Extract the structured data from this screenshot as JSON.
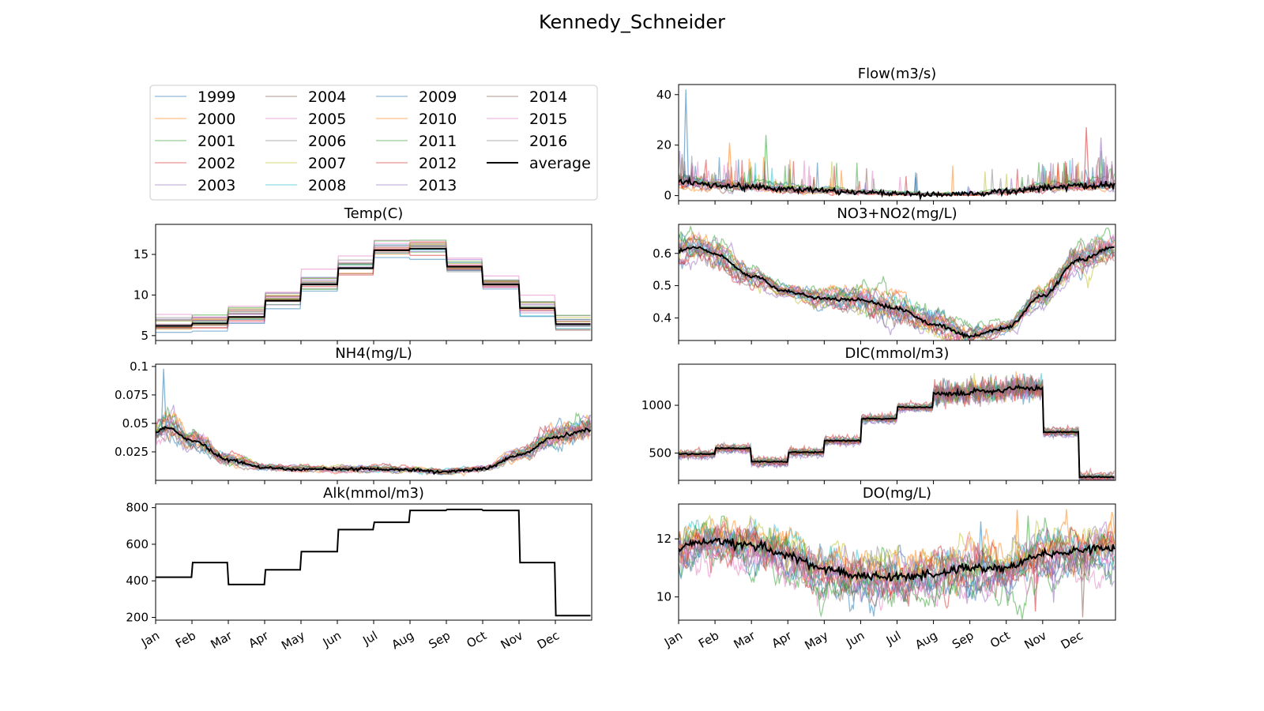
{
  "figure": {
    "title": "Kennedy_Schneider"
  },
  "colors": {
    "year_palette": [
      "#1f77b4",
      "#ff7f0e",
      "#2ca02c",
      "#d62728",
      "#9467bd",
      "#8c564b",
      "#e377c2",
      "#7f7f7f",
      "#bcbd22",
      "#17becf"
    ],
    "average": "#000000"
  },
  "legend": {
    "entries": [
      "1999",
      "2000",
      "2001",
      "2002",
      "2003",
      "2004",
      "2005",
      "2006",
      "2007",
      "2008",
      "2009",
      "2010",
      "2011",
      "2012",
      "2013",
      "2014",
      "2015",
      "2016",
      "average"
    ]
  },
  "chart_data": {
    "type": "line",
    "months": [
      "Jan",
      "Feb",
      "Mar",
      "Apr",
      "May",
      "Jun",
      "Jul",
      "Aug",
      "Sep",
      "Oct",
      "Nov",
      "Dec"
    ],
    "years": [
      "1999",
      "2000",
      "2001",
      "2002",
      "2003",
      "2004",
      "2005",
      "2006",
      "2007",
      "2008",
      "2009",
      "2010",
      "2011",
      "2012",
      "2013",
      "2014",
      "2015",
      "2016"
    ],
    "panels": [
      {
        "id": "flow",
        "title": "Flow(m3/s)",
        "kind": "noisy",
        "ylim": [
          -2,
          44
        ],
        "yticks": [
          0,
          20,
          40
        ],
        "average_knots": [
          [
            0,
            5.5
          ],
          [
            1,
            4
          ],
          [
            2,
            3.5
          ],
          [
            3,
            2.5
          ],
          [
            4,
            2
          ],
          [
            5,
            1.3
          ],
          [
            6,
            0.8
          ],
          [
            7,
            0.5
          ],
          [
            8,
            0.6
          ],
          [
            9,
            1.5
          ],
          [
            10,
            3
          ],
          [
            11,
            4
          ],
          [
            11.99,
            4
          ]
        ],
        "spread": 4.5,
        "spread_mode": "prop",
        "spike_rate": 0.06,
        "spike_max": 12,
        "spikes": [
          [
            0.2,
            42
          ],
          [
            1.4,
            21
          ],
          [
            2.4,
            24
          ],
          [
            11.2,
            27
          ],
          [
            11.6,
            23
          ]
        ]
      },
      {
        "id": "temp",
        "title": "Temp(C)",
        "kind": "step",
        "ylim": [
          4.4,
          18.7
        ],
        "yticks": [
          5,
          10,
          15
        ],
        "average_monthly": [
          6.2,
          6.5,
          7.3,
          9.3,
          11.3,
          13.3,
          15.5,
          15.7,
          13.5,
          11.3,
          8.4,
          6.4
        ],
        "spread": 1.2
      },
      {
        "id": "no3",
        "title": "NO3+NO2(mg/L)",
        "kind": "noisy",
        "ylim": [
          0.33,
          0.69
        ],
        "yticks": [
          0.4,
          0.5,
          0.6
        ],
        "average_knots": [
          [
            0,
            0.61
          ],
          [
            0.5,
            0.62
          ],
          [
            1,
            0.6
          ],
          [
            2,
            0.53
          ],
          [
            3,
            0.48
          ],
          [
            4,
            0.46
          ],
          [
            5,
            0.455
          ],
          [
            6,
            0.43
          ],
          [
            7,
            0.38
          ],
          [
            8,
            0.345
          ],
          [
            9,
            0.37
          ],
          [
            10,
            0.47
          ],
          [
            11,
            0.58
          ],
          [
            11.99,
            0.62
          ]
        ],
        "spread": 0.022,
        "spread_mode": "seasonal"
      },
      {
        "id": "nh4",
        "title": "NH4(mg/L)",
        "kind": "noisy",
        "ylim": [
          0.0,
          0.102
        ],
        "yticks": [
          0.025,
          0.05,
          0.075,
          0.1
        ],
        "average_knots": [
          [
            0,
            0.042
          ],
          [
            0.3,
            0.046
          ],
          [
            1,
            0.035
          ],
          [
            2,
            0.018
          ],
          [
            3,
            0.011
          ],
          [
            4,
            0.0095
          ],
          [
            5,
            0.0095
          ],
          [
            6,
            0.01
          ],
          [
            7,
            0.009
          ],
          [
            8,
            0.0075
          ],
          [
            9,
            0.01
          ],
          [
            10,
            0.022
          ],
          [
            11,
            0.038
          ],
          [
            11.99,
            0.045
          ]
        ],
        "spread": 0.006,
        "spread_mode": "prop",
        "spikes": [
          [
            0.22,
            0.098
          ]
        ]
      },
      {
        "id": "dic",
        "title": "DIC(mmol/m3)",
        "kind": "step_noisy",
        "ylim": [
          215,
          1430
        ],
        "yticks": [
          500,
          1000
        ],
        "average_monthly": [
          490,
          550,
          410,
          510,
          630,
          860,
          980,
          1120,
          1150,
          1180,
          720,
          250
        ],
        "spread": 55
      },
      {
        "id": "alk",
        "title": "Alk(mmol/m3)",
        "kind": "step_single",
        "ylim": [
          185,
          820
        ],
        "yticks": [
          200,
          400,
          600,
          800
        ],
        "average_monthly": [
          420,
          500,
          380,
          460,
          560,
          680,
          720,
          785,
          790,
          785,
          500,
          210
        ]
      },
      {
        "id": "do",
        "title": "DO(mg/L)",
        "kind": "noisy",
        "ylim": [
          9.2,
          13.2
        ],
        "yticks": [
          10,
          12
        ],
        "average_knots": [
          [
            0,
            11.7
          ],
          [
            0.5,
            11.9
          ],
          [
            1,
            11.9
          ],
          [
            2,
            11.8
          ],
          [
            3,
            11.4
          ],
          [
            4,
            11.0
          ],
          [
            5,
            10.7
          ],
          [
            6,
            10.7
          ],
          [
            7,
            10.8
          ],
          [
            8,
            11.0
          ],
          [
            9,
            11.0
          ],
          [
            10,
            11.5
          ],
          [
            11,
            11.6
          ],
          [
            11.99,
            11.7
          ]
        ],
        "spread": 0.6,
        "spread_mode": "const",
        "spikes": [
          [
            8.3,
            12.6
          ],
          [
            9.3,
            13.0
          ],
          [
            9.6,
            12.8
          ],
          [
            9.8,
            9.5
          ],
          [
            10.3,
            9.8
          ],
          [
            11.1,
            9.3
          ]
        ]
      }
    ]
  }
}
